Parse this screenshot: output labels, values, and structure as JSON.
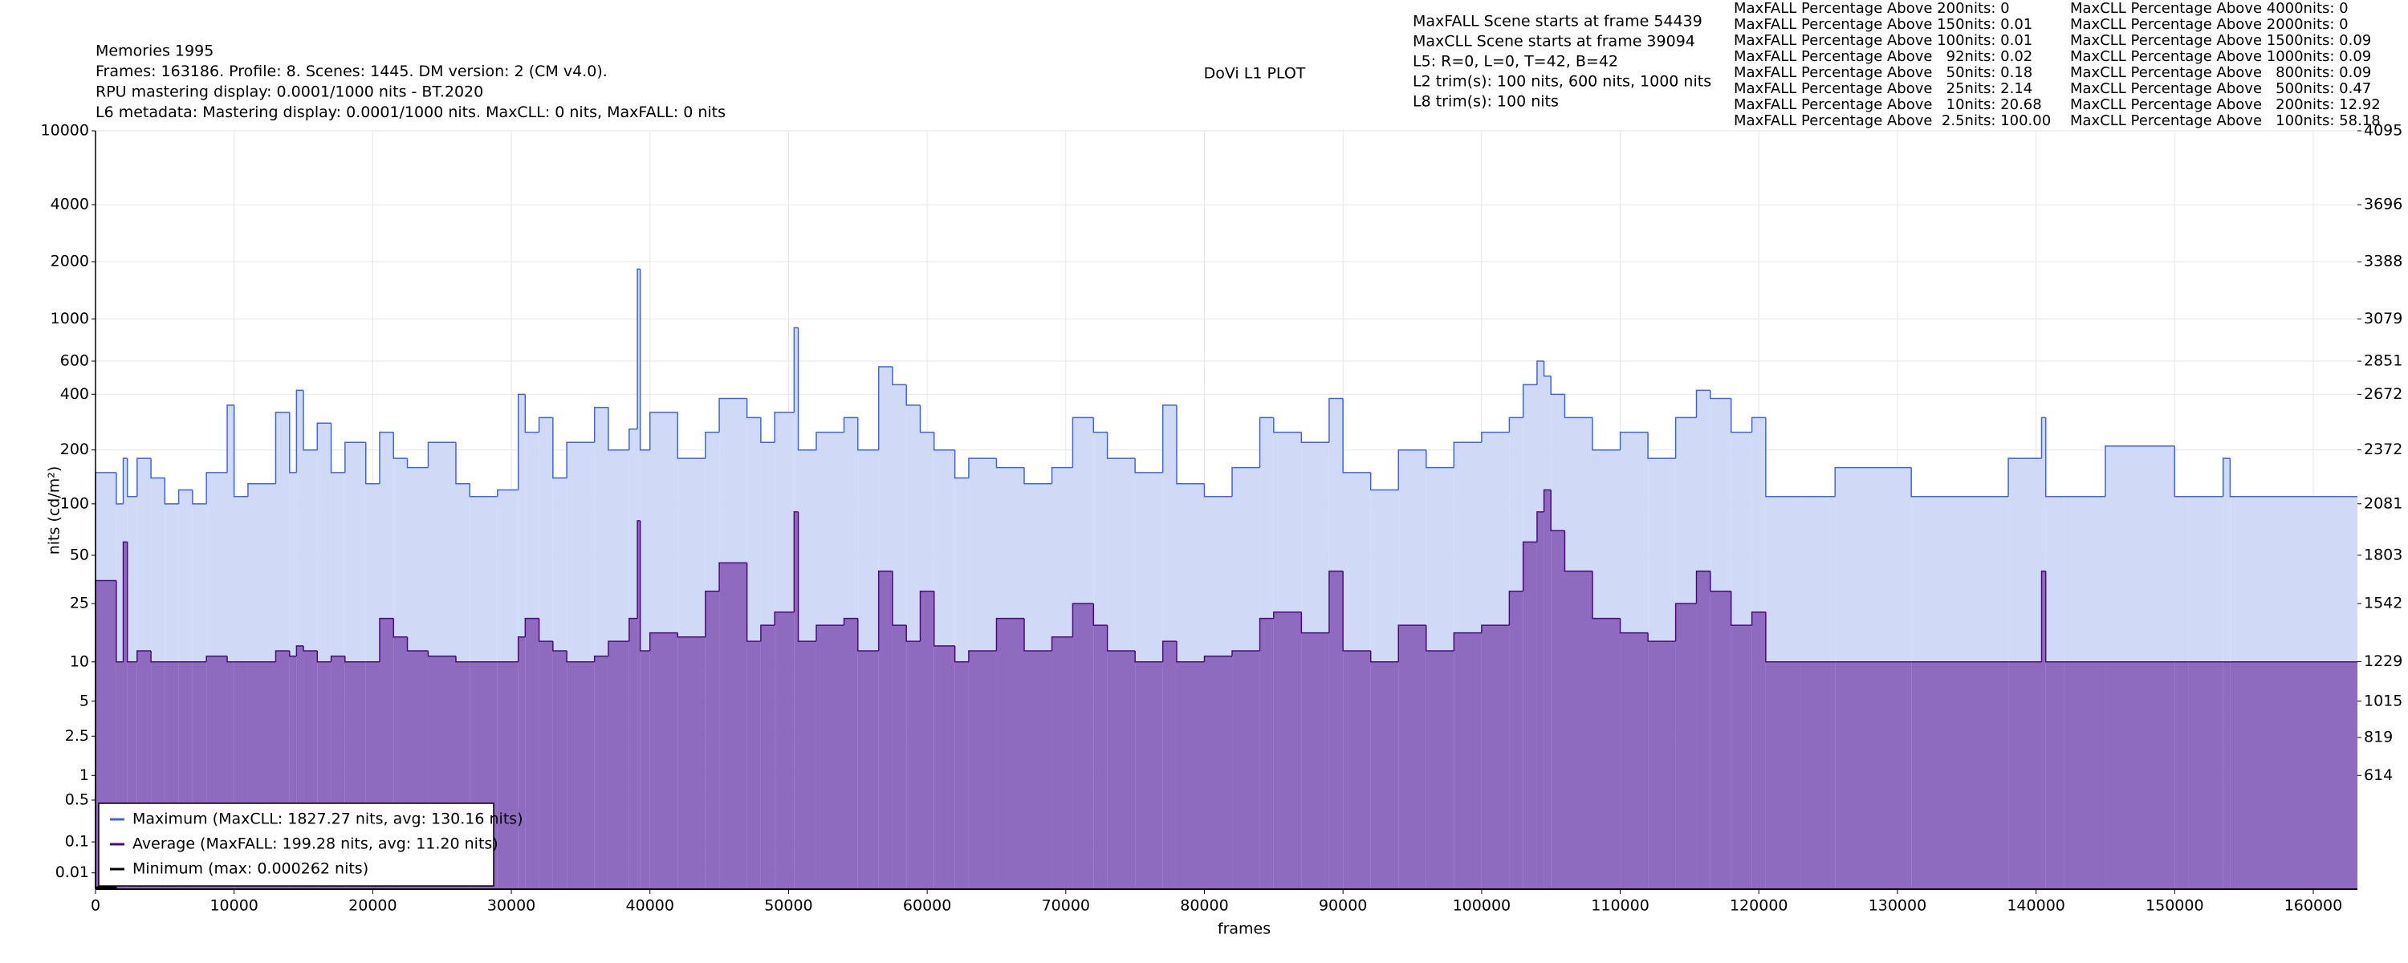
{
  "chart_data": {
    "type": "step",
    "title": "DoVi L1 PLOT",
    "header_lines": [
      "Memories 1995",
      "Frames: 163186. Profile: 8. Scenes: 1445. DM version: 2 (CM v4.0).",
      "RPU mastering display: 0.0001/1000 nits - BT.2020",
      "L6 metadata: Mastering display: 0.0001/1000 nits. MaxCLL: 0 nits, MaxFALL: 0 nits"
    ],
    "scene_lines": [
      "MaxFALL Scene starts at frame 54439",
      "MaxCLL Scene starts at frame 39094",
      "L5: R=0, L=0, T=42, B=42",
      "L2 trim(s): 100 nits, 600 nits, 1000 nits",
      "L8 trim(s): 100 nits"
    ],
    "maxfall_percentages": [
      "MaxFALL Percentage Above 200nits: 0",
      "MaxFALL Percentage Above 150nits: 0.01",
      "MaxFALL Percentage Above 100nits: 0.01",
      "MaxFALL Percentage Above   92nits: 0.02",
      "MaxFALL Percentage Above   50nits: 0.18",
      "MaxFALL Percentage Above   25nits: 2.14",
      "MaxFALL Percentage Above   10nits: 20.68",
      "MaxFALL Percentage Above  2.5nits: 100.00"
    ],
    "maxcll_percentages": [
      "MaxCLL Percentage Above 4000nits: 0",
      "MaxCLL Percentage Above 2000nits: 0",
      "MaxCLL Percentage Above 1500nits: 0.09",
      "MaxCLL Percentage Above 1000nits: 0.09",
      "MaxCLL Percentage Above   800nits: 0.09",
      "MaxCLL Percentage Above   500nits: 0.47",
      "MaxCLL Percentage Above   200nits: 12.92",
      "MaxCLL Percentage Above   100nits: 58.18"
    ],
    "xlabel": "frames",
    "ylabel": "nits (cd/m²)",
    "x": [
      0,
      1500,
      2000,
      2300,
      3000,
      4000,
      5000,
      6000,
      7000,
      8000,
      9500,
      10000,
      11000,
      13000,
      14000,
      14500,
      15000,
      16000,
      17000,
      18000,
      19500,
      20500,
      21500,
      22500,
      24000,
      26000,
      27000,
      29000,
      30500,
      31000,
      32000,
      33000,
      34000,
      36000,
      37000,
      38500,
      39094,
      39300,
      40000,
      42000,
      44000,
      45000,
      47000,
      48000,
      49000,
      50400,
      50700,
      52000,
      54000,
      55000,
      56500,
      57500,
      58500,
      59500,
      60500,
      62000,
      63000,
      65000,
      67000,
      69000,
      70500,
      72000,
      73000,
      75000,
      77000,
      78000,
      80000,
      82000,
      84000,
      85000,
      87000,
      89000,
      90000,
      92000,
      94000,
      96000,
      98000,
      100000,
      102000,
      103000,
      104000,
      104500,
      105000,
      106000,
      108000,
      110000,
      112000,
      114000,
      115500,
      116500,
      118000,
      119500,
      120500,
      123000,
      125500,
      131000,
      138000,
      140400,
      140700,
      142000,
      145000,
      150000,
      151000,
      153500,
      154000,
      163186
    ],
    "series": [
      {
        "name": "Maximum (MaxCLL: 1827.27 nits, avg: 130.16 nits)",
        "color": "#3f66d9",
        "fill": "#d0d9f6",
        "values": [
          150,
          100,
          180,
          110,
          180,
          140,
          100,
          120,
          100,
          150,
          350,
          110,
          130,
          320,
          150,
          420,
          200,
          280,
          150,
          220,
          130,
          250,
          180,
          160,
          220,
          130,
          110,
          120,
          400,
          250,
          300,
          140,
          220,
          340,
          200,
          260,
          1827.27,
          200,
          320,
          180,
          250,
          380,
          300,
          220,
          320,
          900,
          200,
          250,
          300,
          200,
          560,
          450,
          350,
          250,
          200,
          140,
          180,
          160,
          130,
          160,
          300,
          250,
          180,
          150,
          350,
          130,
          110,
          160,
          300,
          250,
          220,
          380,
          150,
          120,
          200,
          160,
          220,
          250,
          300,
          450,
          600,
          500,
          400,
          300,
          200,
          250,
          180,
          300,
          420,
          380,
          250,
          300,
          110,
          110,
          160,
          110,
          180,
          300,
          110,
          110,
          210,
          110,
          110,
          180,
          110,
          110
        ]
      },
      {
        "name": "Average (MaxFALL: 199.28 nits, avg: 11.20 nits)",
        "color": "#4b0a82",
        "fill": "#8e6bbf",
        "values": [
          35,
          10,
          60,
          10,
          12,
          10,
          10,
          10,
          10,
          11,
          10,
          10,
          10,
          12,
          11,
          13,
          12,
          10,
          11,
          10,
          10,
          20,
          15,
          12,
          11,
          10,
          10,
          10,
          15,
          20,
          14,
          12,
          10,
          11,
          14,
          20,
          80,
          12,
          16,
          15,
          30,
          45,
          14,
          18,
          22,
          90,
          14,
          18,
          20,
          12,
          40,
          18,
          14,
          30,
          13,
          10,
          12,
          20,
          12,
          15,
          25,
          18,
          12,
          10,
          14,
          10,
          11,
          12,
          20,
          22,
          16,
          40,
          12,
          10,
          18,
          12,
          16,
          18,
          30,
          60,
          90,
          120,
          70,
          40,
          20,
          16,
          14,
          25,
          40,
          30,
          18,
          22,
          10,
          10,
          10,
          10,
          10,
          40,
          10,
          10,
          10,
          10,
          10,
          10,
          10,
          10
        ]
      },
      {
        "name": "Minimum (max: 0.000262 nits)",
        "color": "#000000",
        "fill": "#000000",
        "values": [
          0.000262,
          0,
          0,
          0,
          0,
          0,
          0,
          0,
          0,
          0,
          0,
          0,
          0,
          0,
          0,
          0,
          0,
          0,
          0,
          0,
          0,
          0,
          0,
          0,
          0,
          0,
          0,
          0,
          0,
          0,
          0,
          0,
          0,
          0,
          0,
          0,
          0,
          0,
          0,
          0,
          0,
          0,
          0,
          0,
          0,
          0,
          0,
          0,
          0,
          0,
          0,
          0,
          0,
          0,
          0,
          0,
          0,
          0,
          0,
          0,
          0,
          0,
          0,
          0,
          0,
          0,
          0,
          0,
          0,
          0,
          0,
          0,
          0,
          0,
          0,
          0,
          0,
          0,
          0,
          0,
          0,
          0,
          0,
          0,
          0,
          0,
          0,
          0,
          0,
          0,
          0,
          0,
          0,
          0,
          0,
          0,
          0,
          0,
          0,
          0,
          0,
          0,
          0,
          0,
          0,
          0
        ]
      }
    ],
    "xlim": [
      0,
      163186
    ],
    "xticks": [
      0,
      10000,
      20000,
      30000,
      40000,
      50000,
      60000,
      70000,
      80000,
      90000,
      100000,
      110000,
      120000,
      130000,
      140000,
      150000,
      160000
    ],
    "yscale": "pq",
    "ylim": [
      0,
      10000
    ],
    "yticks": [
      10000,
      4000,
      2000,
      1000,
      600,
      400,
      200,
      100,
      50,
      25,
      10,
      5,
      2.5,
      1,
      0.5,
      0.1,
      0.01
    ],
    "y2lim": [
      0,
      4095
    ],
    "y2ticks": [
      4095,
      3696,
      3388,
      3079,
      2851,
      2672,
      2372,
      2081,
      1803,
      1542,
      1229,
      1015,
      819,
      614
    ],
    "grid": true,
    "legend": "lower left"
  }
}
